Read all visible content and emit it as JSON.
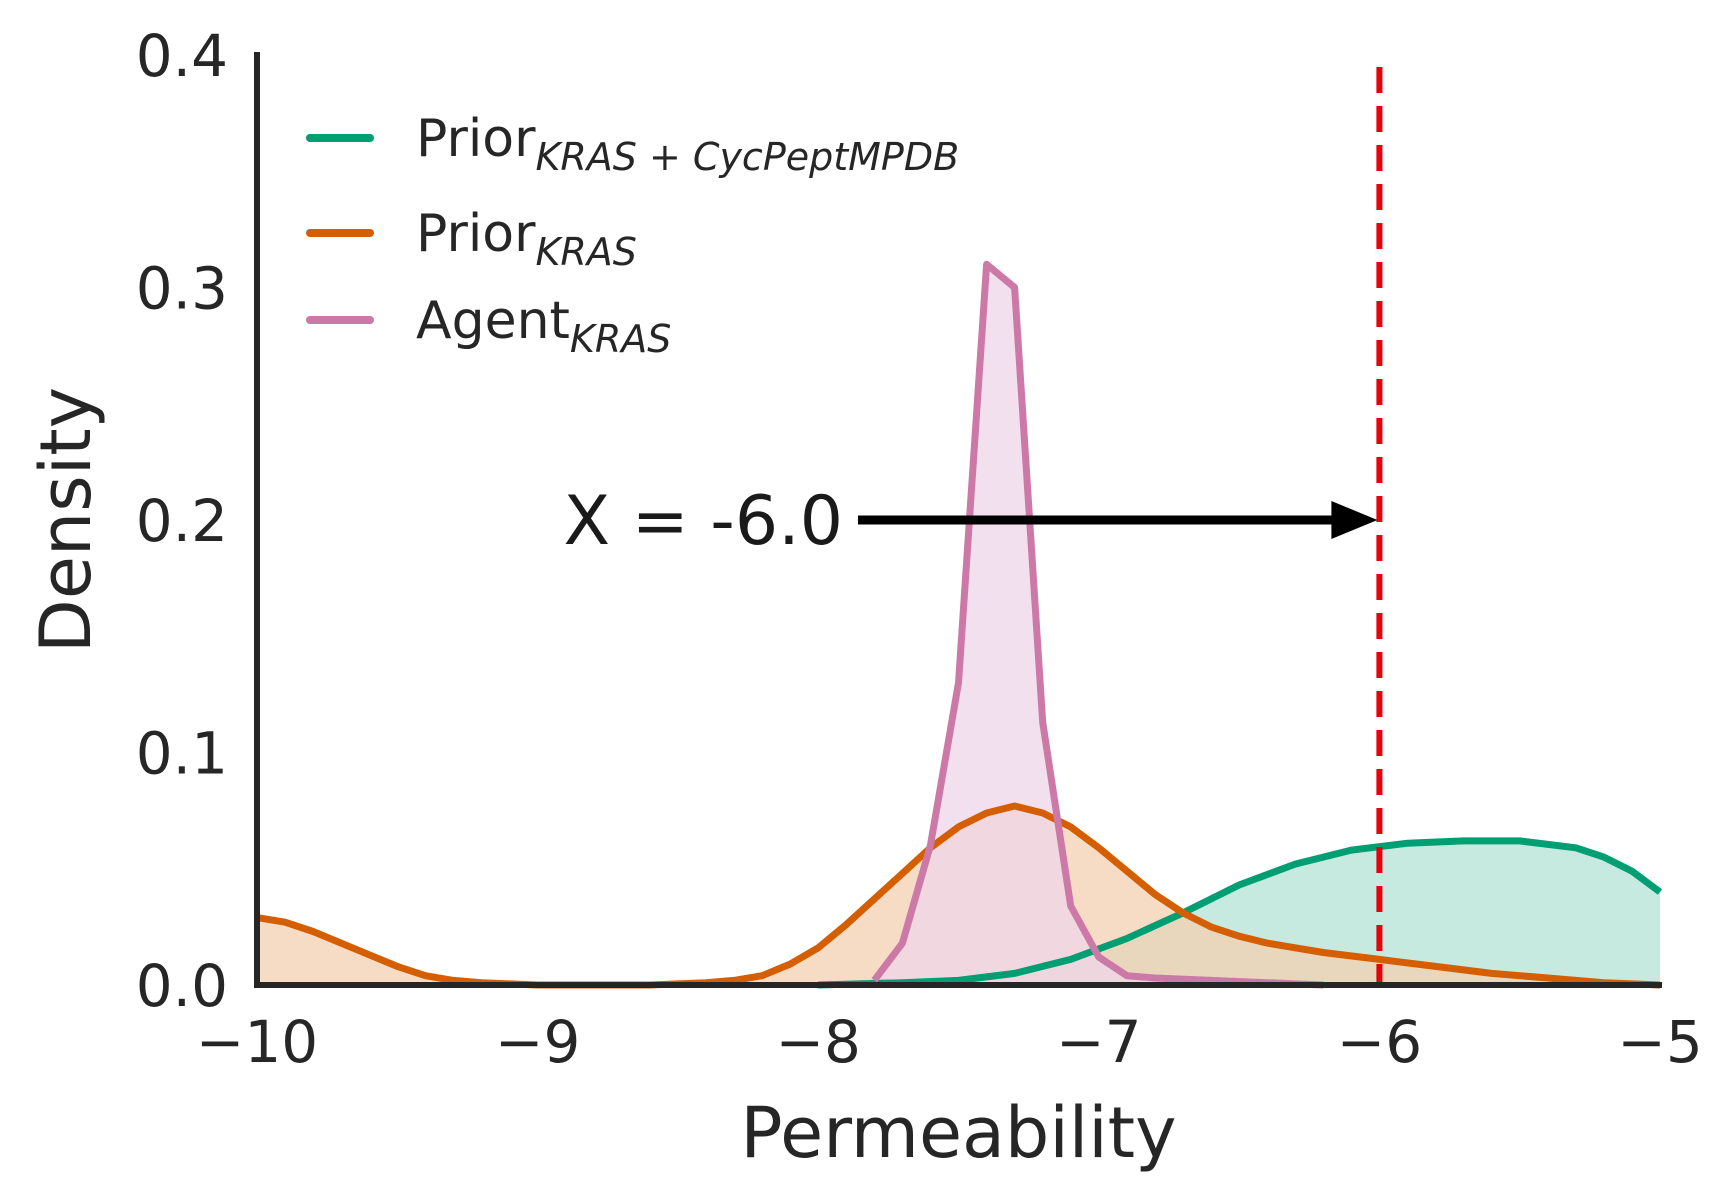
{
  "chart_data": {
    "type": "area",
    "xlabel": "Permeability",
    "ylabel": "Density",
    "xlim": [
      -10,
      -5
    ],
    "ylim": [
      0,
      0.4
    ],
    "x_ticks": [
      -10,
      -9,
      -8,
      -7,
      -6,
      -5
    ],
    "x_tick_labels": [
      "−10",
      "−9",
      "−8",
      "−7",
      "−6",
      "−5"
    ],
    "y_ticks": [
      0.0,
      0.1,
      0.2,
      0.3,
      0.4
    ],
    "y_tick_labels": [
      "0.0",
      "0.1",
      "0.2",
      "0.3",
      "0.4"
    ],
    "grid": false,
    "legend_position": "top-left",
    "series": [
      {
        "name": "Prior",
        "name_subscript": "KRAS + CycPeptMPDB",
        "color": "#009e73",
        "fill": "#b3e2d5",
        "x": [
          -8.0,
          -7.7,
          -7.5,
          -7.3,
          -7.1,
          -6.9,
          -6.7,
          -6.5,
          -6.3,
          -6.1,
          -5.9,
          -5.7,
          -5.5,
          -5.3,
          -5.2,
          -5.1,
          -5.0
        ],
        "y": [
          0.0,
          0.001,
          0.002,
          0.005,
          0.011,
          0.02,
          0.031,
          0.043,
          0.052,
          0.058,
          0.061,
          0.062,
          0.062,
          0.059,
          0.055,
          0.049,
          0.04
        ]
      },
      {
        "name": "Prior",
        "name_subscript": "KRAS",
        "color": "#d55e00",
        "fill": "#f3cfb1",
        "x": [
          -10.0,
          -9.9,
          -9.8,
          -9.6,
          -9.5,
          -9.4,
          -9.3,
          -9.2,
          -9.0,
          -8.8,
          -8.6,
          -8.4,
          -8.3,
          -8.2,
          -8.1,
          -8.0,
          -7.9,
          -7.8,
          -7.7,
          -7.6,
          -7.5,
          -7.4,
          -7.3,
          -7.2,
          -7.1,
          -7.0,
          -6.9,
          -6.8,
          -6.7,
          -6.6,
          -6.5,
          -6.4,
          -6.3,
          -6.2,
          -6.0,
          -5.8,
          -5.6,
          -5.4,
          -5.2,
          -5.0
        ],
        "y": [
          0.029,
          0.027,
          0.023,
          0.013,
          0.008,
          0.004,
          0.002,
          0.001,
          0.0,
          0.0,
          0.0,
          0.001,
          0.002,
          0.004,
          0.009,
          0.016,
          0.026,
          0.037,
          0.048,
          0.059,
          0.068,
          0.074,
          0.077,
          0.074,
          0.068,
          0.059,
          0.049,
          0.039,
          0.031,
          0.025,
          0.021,
          0.018,
          0.016,
          0.014,
          0.011,
          0.008,
          0.005,
          0.003,
          0.001,
          0.0
        ]
      },
      {
        "name": "Agent",
        "name_subscript": "KRAS",
        "color": "#cc79a7",
        "fill": "#efd5e8",
        "x": [
          -7.8,
          -7.7,
          -7.6,
          -7.5,
          -7.4,
          -7.3,
          -7.2,
          -7.1,
          -7.0,
          -6.9,
          -6.8,
          -6.6,
          -6.4,
          -6.2
        ],
        "y": [
          0.002,
          0.018,
          0.06,
          0.13,
          0.31,
          0.3,
          0.113,
          0.034,
          0.012,
          0.004,
          0.003,
          0.002,
          0.001,
          0.0
        ]
      }
    ],
    "threshold_line": {
      "x": -6.0,
      "color": "#e8000b",
      "style": "dashed"
    },
    "annotation": {
      "text": "X = -6.0",
      "arrow_from": [
        -9.0,
        0.2
      ],
      "arrow_to": [
        -6.0,
        0.2
      ]
    }
  }
}
